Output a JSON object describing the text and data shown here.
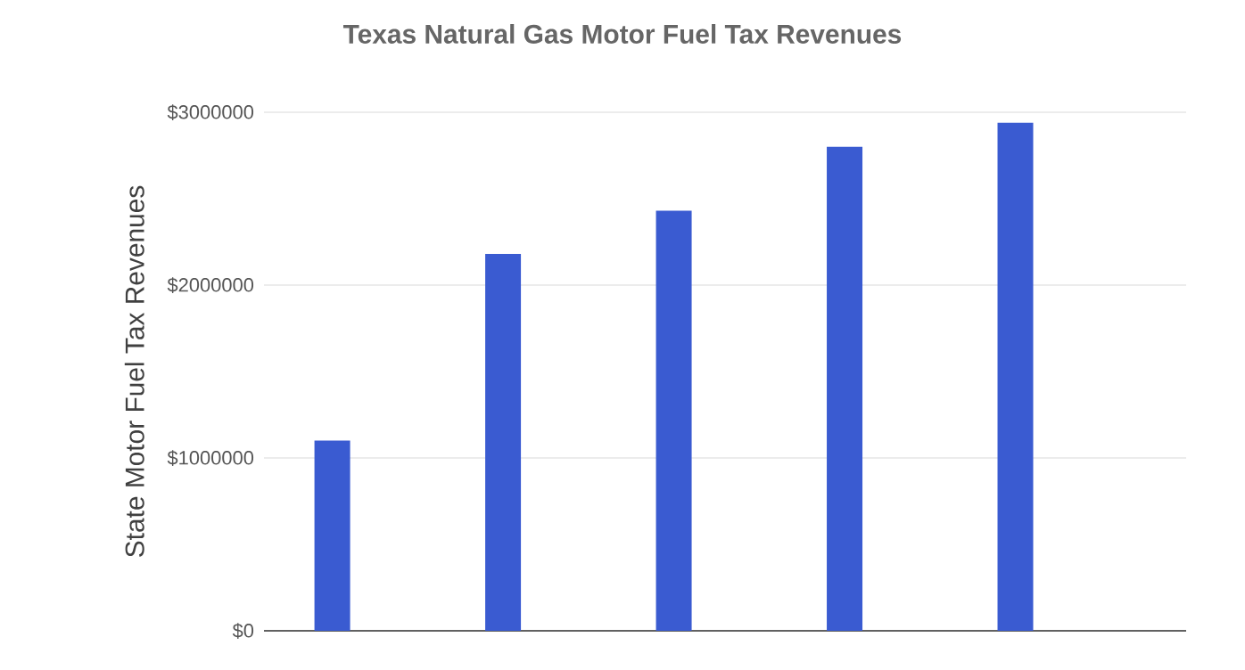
{
  "chart_data": {
    "type": "bar",
    "title": "Texas Natural Gas Motor Fuel Tax Revenues",
    "ylabel": "State Motor Fuel Tax Revenues",
    "categories": [
      null,
      null,
      null,
      null,
      null
    ],
    "values": [
      1100000,
      2180000,
      2430000,
      2800000,
      2940000
    ],
    "color": "#3a5bd1",
    "ylim": [
      0,
      3000000
    ],
    "yticks": [
      {
        "value": 0,
        "label": "$0"
      },
      {
        "value": 1000000,
        "label": "$1000000"
      },
      {
        "value": 2000000,
        "label": "$2000000"
      },
      {
        "value": 3000000,
        "label": "$3000000"
      }
    ],
    "grid": "y",
    "tick_labels": "y"
  }
}
